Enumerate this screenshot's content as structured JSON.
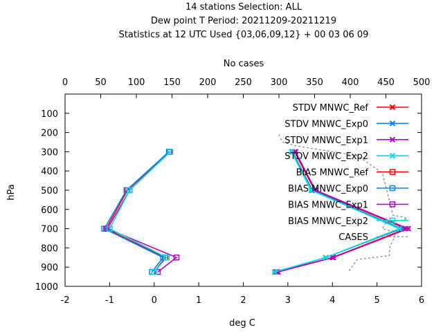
{
  "chart_data": {
    "type": "line",
    "title_lines": [
      "14 stations Selection: ALL",
      "Dew point T  Period: 20211209-20211219",
      "Statistics at 12 UTC  Used {03,06,09,12} + 00 03 06 09"
    ],
    "xlabel": "deg C",
    "ylabel": "hPa",
    "x2label": "No cases",
    "xlim": [
      -2,
      6
    ],
    "ylim": [
      1000,
      0
    ],
    "x2lim": [
      0,
      500
    ],
    "x_ticks": [
      "-2",
      "-1",
      "0",
      "1",
      "2",
      "3",
      "4",
      "5",
      "6"
    ],
    "x_tick_values": [
      -2,
      -1,
      0,
      1,
      2,
      3,
      4,
      5,
      6
    ],
    "y_ticks": [
      "100",
      "200",
      "300",
      "400",
      "500",
      "600",
      "700",
      "800",
      "900",
      "1000"
    ],
    "y_tick_values": [
      100,
      200,
      300,
      400,
      500,
      600,
      700,
      800,
      900,
      1000
    ],
    "x2_ticks": [
      "0",
      "50",
      "100",
      "150",
      "200",
      "250",
      "300",
      "350",
      "400",
      "450",
      "500"
    ],
    "x2_tick_values": [
      0,
      50,
      100,
      150,
      200,
      250,
      300,
      350,
      400,
      450,
      500
    ],
    "grid": false,
    "legend_position": "top-right",
    "levels": [
      300,
      500,
      700,
      850,
      925
    ],
    "series": [
      {
        "name": "STDV MNWC_Ref",
        "color": "#ff0000",
        "marker": "x",
        "values": [
          3.15,
          3.6,
          5.65,
          4.0,
          2.75
        ]
      },
      {
        "name": "STDV MNWC_Exp0",
        "color": "#0080ff",
        "marker": "x",
        "values": [
          3.1,
          3.55,
          5.55,
          3.85,
          2.72
        ]
      },
      {
        "name": "STDV MNWC_Exp1",
        "color": "#b000d0",
        "marker": "x",
        "values": [
          3.17,
          3.62,
          5.7,
          4.02,
          2.78
        ]
      },
      {
        "name": "STDV MNWC_Exp2",
        "color": "#00e0e0",
        "marker": "x",
        "values": [
          3.08,
          3.52,
          5.5,
          3.85,
          2.7
        ]
      },
      {
        "name": "BIAS MNWC_Ref",
        "color": "#ff0000",
        "marker": "square",
        "values": [
          0.35,
          -0.6,
          -1.08,
          0.25,
          0.0
        ]
      },
      {
        "name": "BIAS MNWC_Exp0",
        "color": "#0080ff",
        "marker": "square",
        "values": [
          0.33,
          -0.62,
          -1.12,
          0.2,
          -0.05
        ]
      },
      {
        "name": "BIAS MNWC_Exp1",
        "color": "#b000d0",
        "marker": "square",
        "values": [
          0.36,
          -0.55,
          -1.05,
          0.5,
          0.08
        ]
      },
      {
        "name": "BIAS MNWC_Exp2",
        "color": "#00e0e0",
        "marker": "square",
        "values": [
          0.36,
          -0.55,
          -1.0,
          0.28,
          0.0
        ]
      },
      {
        "name": "CASES",
        "color": "#808080",
        "marker": "none",
        "dashed": true,
        "axis": "x2",
        "points": [
          [
            300,
            210
          ],
          [
            305,
            250
          ],
          [
            325,
            270
          ],
          [
            410,
            320
          ],
          [
            445,
            410
          ],
          [
            460,
            630
          ],
          [
            475,
            640
          ],
          [
            480,
            650
          ],
          [
            450,
            670
          ],
          [
            445,
            700
          ],
          [
            455,
            710
          ],
          [
            465,
            715
          ],
          [
            460,
            760
          ],
          [
            455,
            800
          ],
          [
            455,
            840
          ],
          [
            410,
            860
          ],
          [
            398,
            920
          ]
        ]
      }
    ]
  }
}
